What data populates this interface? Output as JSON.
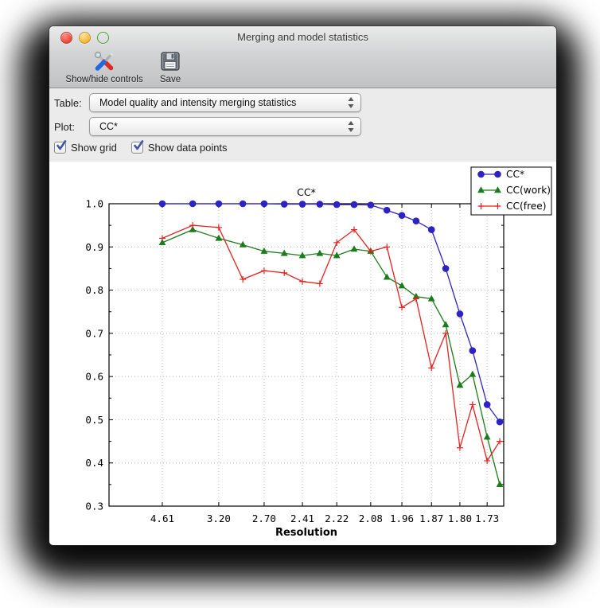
{
  "window": {
    "title": "Merging and model statistics",
    "traffic_lights": {
      "close": "close",
      "minimize": "minimize",
      "zoom": "zoom"
    },
    "toolbar": [
      {
        "label": "Show/hide controls",
        "icon": "tools-icon"
      },
      {
        "label": "Save",
        "icon": "save-icon"
      }
    ],
    "controls": {
      "table_label": "Table:",
      "table_value": "Model quality and intensity merging statistics",
      "plot_label": "Plot:",
      "plot_value": "CC*",
      "show_grid_label": "Show grid",
      "show_grid_checked": true,
      "show_data_points_label": "Show data points",
      "show_data_points_checked": true
    }
  },
  "chart_data": {
    "type": "line",
    "title": "CC*",
    "xlabel": "Resolution",
    "ylim": [
      0.3,
      1.0
    ],
    "y_ticks": [
      0.3,
      0.4,
      0.5,
      0.6,
      0.7,
      0.8,
      0.9,
      1.0
    ],
    "y_grid_values": [
      0.4,
      0.5,
      0.6,
      0.7,
      0.8,
      0.9
    ],
    "grid": true,
    "show_data_points": true,
    "legend_position": "top-right",
    "x_positions": [
      0.135,
      0.212,
      0.278,
      0.339,
      0.393,
      0.444,
      0.49,
      0.534,
      0.577,
      0.621,
      0.663,
      0.704,
      0.742,
      0.778,
      0.817,
      0.853,
      0.889,
      0.921,
      0.958,
      0.99
    ],
    "x_tick_indices": [
      0,
      2,
      4,
      6,
      8,
      10,
      12,
      14,
      16,
      18
    ],
    "x_tick_labels": [
      "4.61",
      "3.20",
      "2.70",
      "2.41",
      "2.22",
      "2.08",
      "1.96",
      "1.87",
      "1.80",
      "1.73"
    ],
    "series": [
      {
        "name": "CC*",
        "color": "#2d23c2",
        "marker": "circle",
        "values": [
          1.0,
          1.0,
          1.0,
          1.0,
          1.0,
          0.999,
          0.999,
          0.999,
          0.998,
          0.998,
          0.997,
          0.985,
          0.973,
          0.96,
          0.94,
          0.85,
          0.745,
          0.66,
          0.535,
          0.495
        ]
      },
      {
        "name": "CC(work)",
        "color": "#1b7c1b",
        "marker": "triangle",
        "values": [
          0.91,
          0.94,
          0.92,
          0.905,
          0.89,
          0.885,
          0.88,
          0.885,
          0.88,
          0.895,
          0.89,
          0.83,
          0.81,
          0.785,
          0.78,
          0.72,
          0.58,
          0.605,
          0.46,
          0.35
        ]
      },
      {
        "name": "CC(free)",
        "color": "#e52320",
        "marker": "plus",
        "values": [
          0.92,
          0.95,
          0.945,
          0.825,
          0.845,
          0.84,
          0.82,
          0.815,
          0.91,
          0.94,
          0.89,
          0.9,
          0.76,
          0.78,
          0.62,
          0.7,
          0.435,
          0.535,
          0.405,
          0.45
        ]
      }
    ]
  }
}
